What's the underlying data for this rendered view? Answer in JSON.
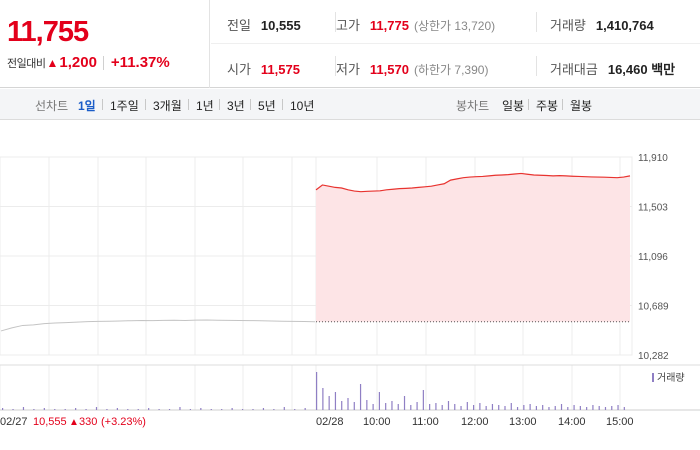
{
  "header": {
    "price": "11,755",
    "change_label": "전일대비",
    "change_arrow": "▲",
    "change_amount": "1,200",
    "change_percent": "+11.37%"
  },
  "stats": {
    "prev_close": {
      "label": "전일",
      "value": "10,555"
    },
    "high": {
      "label": "고가",
      "value": "11,775",
      "sub": "(상한가 13,720)"
    },
    "volume": {
      "label": "거래량",
      "value": "1,410,764"
    },
    "open": {
      "label": "시가",
      "value": "11,575"
    },
    "low": {
      "label": "저가",
      "value": "11,570",
      "sub": "(하한가 7,390)"
    },
    "trade_value": {
      "label": "거래대금",
      "value": "16,460 백만"
    }
  },
  "toolbar": {
    "line_label": "선차트",
    "line_items": [
      "1일",
      "1주일",
      "3개월",
      "1년",
      "3년",
      "5년",
      "10년"
    ],
    "active_line_item": "1일",
    "candle_label": "봉차트",
    "candle_items": [
      "일봉",
      "주봉",
      "월봉"
    ]
  },
  "chart_data": {
    "type": "line",
    "price_ticks": [
      "11,910",
      "11,503",
      "11,096",
      "10,689",
      "10,282"
    ],
    "price_range": [
      10282,
      11910
    ],
    "prev_close": 10555,
    "series": [
      {
        "day": "02/27",
        "points": [
          10480,
          10505,
          10525,
          10530,
          10540,
          10545,
          10548,
          10552,
          10556,
          10558,
          10560,
          10562,
          10564,
          10566,
          10565,
          10567,
          10568,
          10566,
          10569,
          10570,
          10568,
          10567,
          10566,
          10565,
          10564,
          10562,
          10560,
          10558,
          10557,
          10555
        ]
      },
      {
        "day": "02/28",
        "points": [
          11640,
          11680,
          11670,
          11660,
          11655,
          11640,
          11630,
          11625,
          11628,
          11630,
          11632,
          11640,
          11645,
          11650,
          11652,
          11655,
          11660,
          11665,
          11670,
          11680,
          11690,
          11720,
          11730,
          11740,
          11745,
          11748,
          11750,
          11755,
          11760,
          11762,
          11765,
          11770,
          11775,
          11768,
          11762,
          11760,
          11758,
          11755,
          11757,
          11755,
          11752,
          11750,
          11748,
          11746,
          11745,
          11744,
          11742,
          11740,
          11745,
          11755
        ]
      }
    ],
    "x_labels": [
      "02/27",
      "02/28",
      "10:00",
      "11:00",
      "12:00",
      "13:00",
      "14:00",
      "15:00"
    ],
    "prev_day_annotation": {
      "close": "10,555",
      "arrow": "▲",
      "change": "330",
      "percent": "(+3.23%)"
    },
    "volume_legend": "거래량",
    "volume": [
      2,
      1,
      3,
      1,
      2,
      1,
      1,
      2,
      1,
      3,
      1,
      2,
      1,
      1,
      2,
      1,
      1,
      3,
      1,
      2,
      1,
      1,
      2,
      1,
      1,
      2,
      1,
      3,
      1,
      2,
      38,
      22,
      14,
      18,
      9,
      12,
      8,
      26,
      10,
      6,
      18,
      7,
      9,
      6,
      14,
      5,
      8,
      20,
      6,
      7,
      5,
      9,
      6,
      4,
      8,
      5,
      7,
      4,
      6,
      5,
      4,
      7,
      3,
      5,
      6,
      4,
      5,
      3,
      4,
      6,
      3,
      5,
      4,
      3,
      5,
      4,
      3,
      4,
      5,
      3
    ],
    "colors": {
      "up_line": "#e8332f",
      "up_fill": "#fde4e6",
      "prev_line": "#c4c4c4",
      "grid": "#ececec",
      "volume": "#8f7fc4",
      "up_text": "#e3001b"
    }
  }
}
